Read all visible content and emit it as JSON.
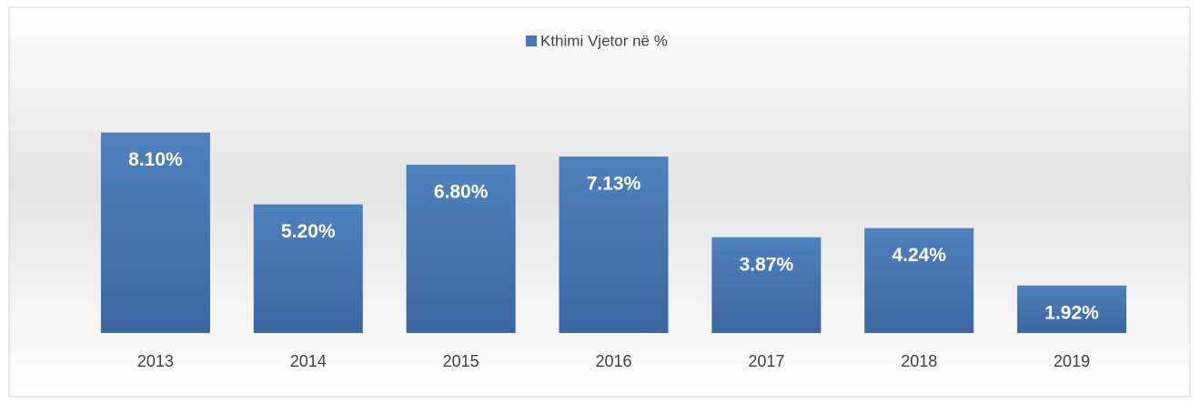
{
  "chart_data": {
    "type": "bar",
    "categories": [
      "2013",
      "2014",
      "2015",
      "2016",
      "2017",
      "2018",
      "2019"
    ],
    "series": [
      {
        "name": "Kthimi Vjetor në %",
        "color": "#4a78b6",
        "values": [
          8.1,
          5.2,
          6.8,
          7.13,
          3.87,
          4.24,
          1.92
        ],
        "value_labels": [
          "8.10%",
          "5.20%",
          "6.80%",
          "7.13%",
          "3.87%",
          "4.24%",
          "1.92%"
        ]
      }
    ],
    "ylim": [
      0,
      10
    ],
    "legend": "top"
  }
}
